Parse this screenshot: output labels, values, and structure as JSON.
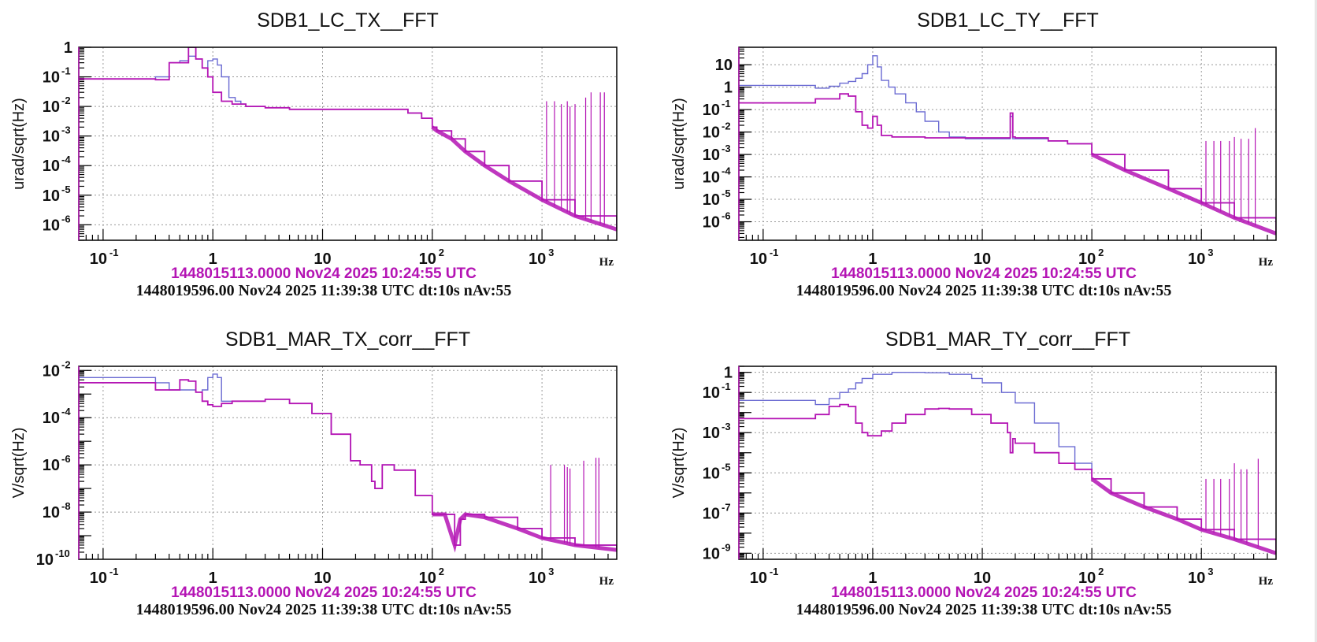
{
  "colors": {
    "reference_trace": "#6a6ad2",
    "live_trace": "#b414b4",
    "frame": "#000000",
    "grid": "#999999",
    "stamp_reference": "#b414b4",
    "stamp_live": "#111111"
  },
  "chart_data": [
    {
      "type": "line",
      "title": "SDB1_LC_TX__FFT",
      "xlabel": "Hz",
      "ylabel": "urad/sqrt(Hz)",
      "xscale": "log",
      "yscale": "log",
      "xlim": [
        0.06,
        4800
      ],
      "ylim": [
        3e-07,
        1
      ],
      "grid": true,
      "xticks": [
        {
          "v": 0.1,
          "base": "10",
          "exp": "-1"
        },
        {
          "v": 1,
          "base": "1",
          "exp": ""
        },
        {
          "v": 10,
          "base": "10",
          "exp": ""
        },
        {
          "v": 100,
          "base": "10",
          "exp": "2"
        },
        {
          "v": 1000,
          "base": "10",
          "exp": "3"
        }
      ],
      "yticks": [
        {
          "v": 1,
          "base": "1",
          "exp": ""
        },
        {
          "v": 0.1,
          "base": "10",
          "exp": "-1"
        },
        {
          "v": 0.01,
          "base": "10",
          "exp": "-2"
        },
        {
          "v": 0.001,
          "base": "10",
          "exp": "-3"
        },
        {
          "v": 0.0001,
          "base": "10",
          "exp": "-4"
        },
        {
          "v": 1e-05,
          "base": "10",
          "exp": "-5"
        },
        {
          "v": 1e-06,
          "base": "10",
          "exp": "-6"
        }
      ],
      "stamp_reference": "1448015113.0000 Nov24 2025 10:24:55 UTC",
      "stamp_live": "1448019596.00 Nov24 2025 11:39:38 UTC dt:10s nAv:55",
      "series": [
        {
          "name": "reference",
          "color": "#6a6ad2",
          "step": true,
          "x": [
            0.06,
            0.2,
            0.3,
            0.4,
            0.5,
            0.6,
            0.7,
            0.8,
            0.9,
            1.0,
            1.1,
            1.2,
            1.4,
            1.6,
            1.8,
            2,
            3,
            5,
            10,
            20,
            40,
            60,
            80,
            100,
            110,
            150,
            200,
            300,
            500,
            1000,
            2000,
            4800
          ],
          "y": [
            0.085,
            0.085,
            0.1,
            0.3,
            0.35,
            0.5,
            0.4,
            0.2,
            0.35,
            0.4,
            0.25,
            0.1,
            0.02,
            0.015,
            0.012,
            0.01,
            0.009,
            0.008,
            0.008,
            0.008,
            0.008,
            0.006,
            0.004,
            0.002,
            0.0015,
            0.0008,
            0.0003,
            0.0001,
            3e-05,
            7e-06,
            2e-06,
            7e-07
          ]
        },
        {
          "name": "live",
          "color": "#b414b4",
          "step": true,
          "x": [
            0.06,
            0.2,
            0.3,
            0.4,
            0.6,
            0.7,
            0.8,
            0.9,
            1.0,
            1.2,
            1.5,
            2,
            3,
            5,
            10,
            20,
            40,
            60,
            80,
            100,
            110,
            150,
            200,
            300,
            500,
            1000,
            2000,
            4800
          ],
          "y": [
            0.085,
            0.085,
            0.08,
            0.3,
            1.0,
            0.4,
            0.2,
            0.1,
            0.03,
            0.015,
            0.012,
            0.01,
            0.009,
            0.008,
            0.008,
            0.008,
            0.008,
            0.006,
            0.004,
            0.002,
            0.0015,
            0.0008,
            0.0003,
            0.0001,
            3e-05,
            7e-06,
            2e-06,
            7e-07
          ]
        }
      ],
      "spikes": {
        "color": "#b414b4",
        "lines": [
          [
            1100,
            0.015
          ],
          [
            1300,
            0.015
          ],
          [
            1500,
            0.012
          ],
          [
            1700,
            0.015
          ],
          [
            1800,
            0.01
          ],
          [
            2000,
            0.012
          ],
          [
            2500,
            0.02
          ],
          [
            2800,
            0.03
          ],
          [
            3400,
            0.03
          ],
          [
            3700,
            0.03
          ]
        ]
      }
    },
    {
      "type": "line",
      "title": "SDB1_LC_TY__FFT",
      "xlabel": "Hz",
      "ylabel": "urad/sqrt(Hz)",
      "xscale": "log",
      "yscale": "log",
      "xlim": [
        0.06,
        4800
      ],
      "ylim": [
        1.5e-07,
        60
      ],
      "grid": true,
      "xticks": [
        {
          "v": 0.1,
          "base": "10",
          "exp": "-1"
        },
        {
          "v": 1,
          "base": "1",
          "exp": ""
        },
        {
          "v": 10,
          "base": "10",
          "exp": ""
        },
        {
          "v": 100,
          "base": "10",
          "exp": "2"
        },
        {
          "v": 1000,
          "base": "10",
          "exp": "3"
        }
      ],
      "yticks": [
        {
          "v": 10,
          "base": "10",
          "exp": ""
        },
        {
          "v": 1,
          "base": "1",
          "exp": ""
        },
        {
          "v": 0.1,
          "base": "10",
          "exp": "-1"
        },
        {
          "v": 0.01,
          "base": "10",
          "exp": "-2"
        },
        {
          "v": 0.001,
          "base": "10",
          "exp": "-3"
        },
        {
          "v": 0.0001,
          "base": "10",
          "exp": "-4"
        },
        {
          "v": 1e-05,
          "base": "10",
          "exp": "-5"
        },
        {
          "v": 1e-06,
          "base": "10",
          "exp": "-6"
        }
      ],
      "stamp_reference": "1448015113.0000 Nov24 2025 10:24:55 UTC",
      "stamp_live": "1448019596.00 Nov24 2025 11:39:38 UTC dt:10s nAv:55",
      "series": [
        {
          "name": "reference",
          "color": "#6a6ad2",
          "step": true,
          "x": [
            0.06,
            0.2,
            0.3,
            0.4,
            0.5,
            0.6,
            0.7,
            0.8,
            0.9,
            1.0,
            1.1,
            1.2,
            1.4,
            1.6,
            2,
            2.5,
            3,
            4,
            5,
            7,
            10,
            17,
            18,
            19,
            20,
            40,
            60,
            100,
            200,
            500,
            1000,
            2000,
            4800
          ],
          "y": [
            1.2,
            1.2,
            0.9,
            1.1,
            1.5,
            1.8,
            2.5,
            4,
            10,
            25,
            8,
            2,
            1,
            0.5,
            0.2,
            0.08,
            0.03,
            0.01,
            0.006,
            0.005,
            0.005,
            0.005,
            0.05,
            0.005,
            0.005,
            0.004,
            0.003,
            0.001,
            0.0002,
            3e-05,
            7e-06,
            1.5e-06,
            3e-07
          ]
        },
        {
          "name": "live",
          "color": "#b414b4",
          "step": true,
          "x": [
            0.06,
            0.2,
            0.3,
            0.5,
            0.6,
            0.7,
            0.8,
            0.9,
            1.0,
            1.1,
            1.2,
            1.5,
            2,
            3,
            5,
            10,
            17,
            18,
            19,
            20,
            40,
            60,
            100,
            200,
            500,
            1000,
            2000,
            4800
          ],
          "y": [
            0.2,
            0.2,
            0.3,
            0.5,
            0.4,
            0.08,
            0.02,
            0.015,
            0.05,
            0.02,
            0.007,
            0.006,
            0.006,
            0.0055,
            0.0055,
            0.0055,
            0.0055,
            0.07,
            0.006,
            0.0055,
            0.004,
            0.003,
            0.001,
            0.0002,
            3e-05,
            7e-06,
            1.5e-06,
            3e-07
          ]
        }
      ],
      "spikes": {
        "color": "#b414b4",
        "lines": [
          [
            1100,
            0.004
          ],
          [
            1300,
            0.004
          ],
          [
            1500,
            0.004
          ],
          [
            1800,
            0.004
          ],
          [
            2000,
            0.006
          ],
          [
            2300,
            0.005
          ],
          [
            2700,
            0.005
          ],
          [
            3100,
            0.015
          ]
        ]
      }
    },
    {
      "type": "line",
      "title": "SDB1_MAR_TX_corr__FFT",
      "xlabel": "Hz",
      "ylabel": "V/sqrt(Hz)",
      "xscale": "log",
      "yscale": "log",
      "xlim": [
        0.06,
        4800
      ],
      "ylim": [
        1e-10,
        0.015
      ],
      "grid": true,
      "xticks": [
        {
          "v": 0.1,
          "base": "10",
          "exp": "-1"
        },
        {
          "v": 1,
          "base": "1",
          "exp": ""
        },
        {
          "v": 10,
          "base": "10",
          "exp": ""
        },
        {
          "v": 100,
          "base": "10",
          "exp": "2"
        },
        {
          "v": 1000,
          "base": "10",
          "exp": "3"
        }
      ],
      "yticks": [
        {
          "v": 0.01,
          "base": "10",
          "exp": "-2"
        },
        {
          "v": 0.0001,
          "base": "10",
          "exp": "-4"
        },
        {
          "v": 1e-06,
          "base": "10",
          "exp": "-6"
        },
        {
          "v": 1e-08,
          "base": "10",
          "exp": "-8"
        },
        {
          "v": 1e-10,
          "base": "10",
          "exp": "-10"
        }
      ],
      "stamp_reference": "1448015113.0000 Nov24 2025 10:24:55 UTC",
      "stamp_live": "1448019596.00 Nov24 2025 11:39:38 UTC dt:10s nAv:55",
      "series": [
        {
          "name": "reference",
          "color": "#6a6ad2",
          "step": true,
          "x": [
            0.06,
            0.2,
            0.3,
            0.4,
            0.5,
            0.7,
            0.8,
            0.9,
            1.0,
            1.1,
            1.2,
            1.5,
            2,
            3,
            5,
            8,
            12,
            18,
            22,
            28,
            30,
            35,
            45,
            70,
            100,
            130,
            160,
            180,
            200,
            300,
            600,
            1000,
            2000,
            4800
          ],
          "y": [
            0.005,
            0.005,
            0.003,
            0.0015,
            0.0015,
            0.0012,
            0.0015,
            0.005,
            0.007,
            0.005,
            0.0005,
            0.0005,
            0.0005,
            0.0006,
            0.0004,
            0.00015,
            2e-05,
            1.5e-06,
            1e-06,
            2e-07,
            1e-07,
            1e-06,
            6e-07,
            5e-08,
            8e-09,
            8e-09,
            4e-10,
            5e-09,
            8e-09,
            6e-09,
            2e-09,
            8e-10,
            4e-10,
            2.5e-10
          ]
        },
        {
          "name": "live",
          "color": "#b414b4",
          "step": true,
          "x": [
            0.06,
            0.2,
            0.3,
            0.4,
            0.5,
            0.6,
            0.7,
            0.8,
            0.9,
            1.0,
            1.2,
            1.5,
            2,
            3,
            5,
            8,
            12,
            18,
            22,
            28,
            30,
            35,
            45,
            70,
            100,
            130,
            160,
            180,
            200,
            300,
            600,
            1000,
            2000,
            4800
          ],
          "y": [
            0.003,
            0.003,
            0.0015,
            0.0015,
            0.004,
            0.0035,
            0.0012,
            0.0005,
            0.00035,
            0.0003,
            0.0004,
            0.0005,
            0.0005,
            0.0006,
            0.0004,
            0.00015,
            2e-05,
            1.5e-06,
            1e-06,
            2e-07,
            1e-07,
            1e-06,
            6e-07,
            5e-08,
            8e-09,
            8e-09,
            4e-10,
            5e-09,
            8e-09,
            6e-09,
            2e-09,
            8e-10,
            4e-10,
            2.5e-10
          ]
        }
      ],
      "spikes": {
        "color": "#b414b4",
        "lines": [
          [
            1200,
            1e-06
          ],
          [
            1600,
            1e-06
          ],
          [
            1700,
            8e-07
          ],
          [
            1800,
            7e-07
          ],
          [
            2400,
            1.5e-06
          ],
          [
            3100,
            2e-06
          ],
          [
            3300,
            2e-06
          ]
        ]
      }
    },
    {
      "type": "line",
      "title": "SDB1_MAR_TY_corr__FFT",
      "xlabel": "Hz",
      "ylabel": "V/sqrt(Hz)",
      "xscale": "log",
      "yscale": "log",
      "xlim": [
        0.06,
        4800
      ],
      "ylim": [
        5e-10,
        2
      ],
      "grid": true,
      "xticks": [
        {
          "v": 0.1,
          "base": "10",
          "exp": "-1"
        },
        {
          "v": 1,
          "base": "1",
          "exp": ""
        },
        {
          "v": 10,
          "base": "10",
          "exp": ""
        },
        {
          "v": 100,
          "base": "10",
          "exp": "2"
        },
        {
          "v": 1000,
          "base": "10",
          "exp": "3"
        }
      ],
      "yticks": [
        {
          "v": 1,
          "base": "1",
          "exp": ""
        },
        {
          "v": 0.1,
          "base": "10",
          "exp": "-1"
        },
        {
          "v": 0.001,
          "base": "10",
          "exp": "-3"
        },
        {
          "v": 1e-05,
          "base": "10",
          "exp": "-5"
        },
        {
          "v": 1e-07,
          "base": "10",
          "exp": "-7"
        },
        {
          "v": 1e-09,
          "base": "10",
          "exp": "-9"
        }
      ],
      "stamp_reference": "1448015113.0000 Nov24 2025 10:24:55 UTC",
      "stamp_live": "1448019596.00 Nov24 2025 11:39:38 UTC dt:10s nAv:55",
      "series": [
        {
          "name": "reference",
          "color": "#6a6ad2",
          "step": true,
          "x": [
            0.06,
            0.2,
            0.3,
            0.4,
            0.5,
            0.6,
            0.7,
            0.8,
            1.0,
            1.5,
            2,
            3,
            5,
            8,
            10,
            15,
            20,
            30,
            50,
            70,
            100,
            150,
            300,
            600,
            1000,
            2000,
            4800
          ],
          "y": [
            0.04,
            0.04,
            0.025,
            0.05,
            0.1,
            0.15,
            0.3,
            0.5,
            0.8,
            1.0,
            1.0,
            0.95,
            0.8,
            0.5,
            0.3,
            0.1,
            0.03,
            0.003,
            0.0002,
            3e-05,
            5e-06,
            1e-06,
            2e-07,
            5e-08,
            1.5e-08,
            5e-09,
            1e-09
          ]
        },
        {
          "name": "live",
          "color": "#b414b4",
          "step": true,
          "x": [
            0.06,
            0.2,
            0.3,
            0.4,
            0.5,
            0.6,
            0.7,
            0.8,
            0.9,
            1.0,
            1.2,
            1.5,
            2,
            3,
            4,
            5,
            8,
            12,
            17,
            18,
            19,
            20,
            30,
            50,
            70,
            100,
            150,
            300,
            600,
            1000,
            2000,
            4800
          ],
          "y": [
            0.005,
            0.005,
            0.008,
            0.02,
            0.025,
            0.02,
            0.003,
            0.001,
            0.0007,
            0.0007,
            0.0012,
            0.003,
            0.008,
            0.015,
            0.016,
            0.015,
            0.008,
            0.003,
            0.001,
            0.0001,
            0.0005,
            0.0003,
            0.0001,
            3e-05,
            1.5e-05,
            5e-06,
            1e-06,
            2e-07,
            5e-08,
            1.5e-08,
            5e-09,
            1e-09
          ]
        }
      ],
      "spikes": {
        "color": "#b414b4",
        "lines": [
          [
            1100,
            5e-06
          ],
          [
            1300,
            5e-06
          ],
          [
            1500,
            5e-06
          ],
          [
            1800,
            5e-06
          ],
          [
            2000,
            3e-05
          ],
          [
            2300,
            1.5e-05
          ],
          [
            2600,
            1.5e-05
          ],
          [
            3300,
            5e-05
          ]
        ]
      }
    }
  ]
}
